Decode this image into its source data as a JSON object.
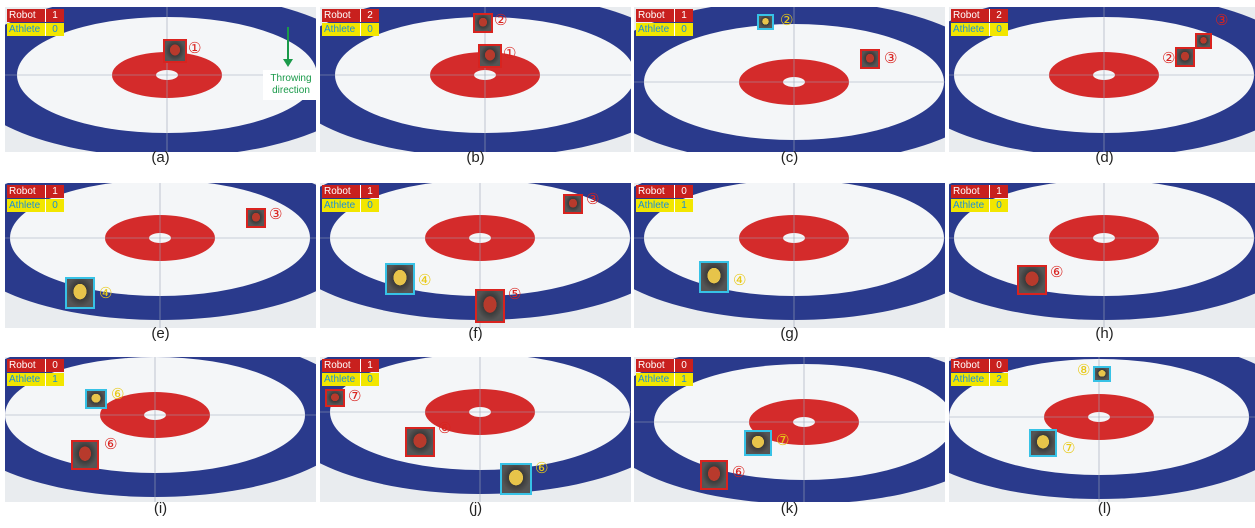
{
  "scoreboard_labels": {
    "robot": "Robot",
    "athlete": "Athlete"
  },
  "colors": {
    "robot": "#d9231f",
    "athlete_box": "#37c2e6",
    "athlete_tag": "#e8c916",
    "house_blue": "#2a3a8c",
    "house_red": "#d42b2b",
    "arrow": "#1a9a4a"
  },
  "throwing_direction": "Throwing direction",
  "panels": [
    {
      "caption": "(a)",
      "robot": "1",
      "athlete": "0",
      "stones": [
        {
          "team": "red",
          "tag": "①"
        }
      ]
    },
    {
      "caption": "(b)",
      "robot": "2",
      "athlete": "0",
      "stones": [
        {
          "team": "red",
          "tag": "②"
        },
        {
          "team": "red",
          "tag": "①"
        }
      ]
    },
    {
      "caption": "(c)",
      "robot": "1",
      "athlete": "0",
      "stones": [
        {
          "team": "cyan",
          "tag": "②"
        },
        {
          "team": "red",
          "tag": "③"
        }
      ]
    },
    {
      "caption": "(d)",
      "robot": "2",
      "athlete": "0",
      "stones": [
        {
          "team": "red",
          "tag": "③"
        },
        {
          "team": "red",
          "tag": "②"
        }
      ]
    },
    {
      "caption": "(e)",
      "robot": "1",
      "athlete": "0",
      "stones": [
        {
          "team": "red",
          "tag": "③"
        },
        {
          "team": "cyan",
          "tag": "④"
        }
      ]
    },
    {
      "caption": "(f)",
      "robot": "1",
      "athlete": "0",
      "stones": [
        {
          "team": "red",
          "tag": "③"
        },
        {
          "team": "cyan",
          "tag": "④"
        },
        {
          "team": "red",
          "tag": "⑤"
        }
      ]
    },
    {
      "caption": "(g)",
      "robot": "0",
      "athlete": "1",
      "stones": [
        {
          "team": "cyan",
          "tag": "④"
        }
      ]
    },
    {
      "caption": "(h)",
      "robot": "1",
      "athlete": "0",
      "stones": [
        {
          "team": "red",
          "tag": "⑥"
        }
      ]
    },
    {
      "caption": "(i)",
      "robot": "0",
      "athlete": "1",
      "stones": [
        {
          "team": "cyan",
          "tag": "⑥"
        },
        {
          "team": "red",
          "tag": "⑥"
        }
      ]
    },
    {
      "caption": "(j)",
      "robot": "1",
      "athlete": "0",
      "stones": [
        {
          "team": "red",
          "tag": "⑦"
        },
        {
          "team": "red",
          "tag": "⑥"
        },
        {
          "team": "cyan",
          "tag": "⑥"
        }
      ]
    },
    {
      "caption": "(k)",
      "robot": "0",
      "athlete": "1",
      "stones": [
        {
          "team": "cyan",
          "tag": "⑦"
        },
        {
          "team": "red",
          "tag": "⑥"
        }
      ]
    },
    {
      "caption": "(l)",
      "robot": "0",
      "athlete": "2",
      "stones": [
        {
          "team": "cyan",
          "tag": "⑧"
        },
        {
          "team": "cyan",
          "tag": "⑦"
        }
      ]
    }
  ]
}
